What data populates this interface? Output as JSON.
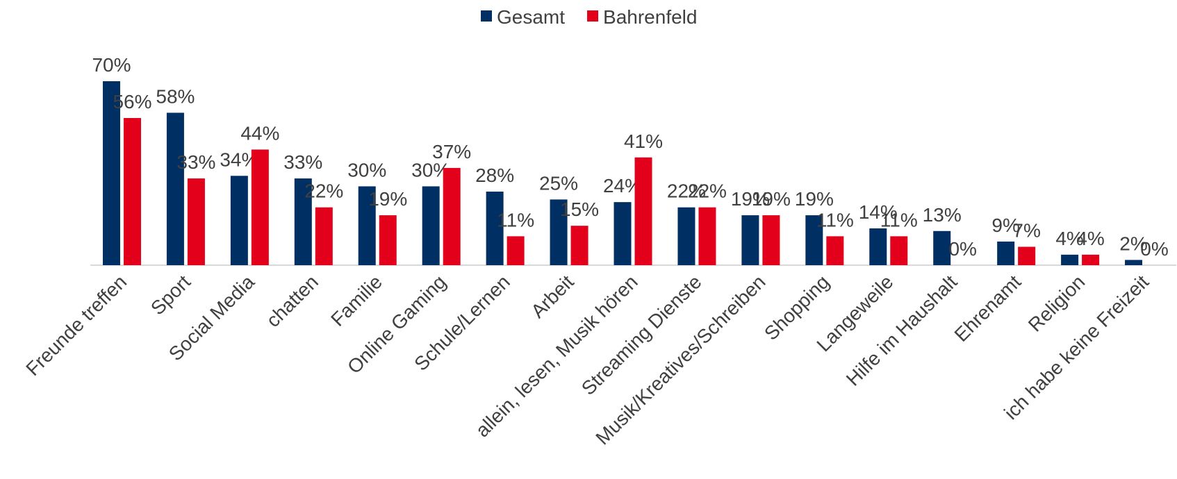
{
  "chart_data": {
    "type": "bar",
    "categories": [
      "Freunde treffen",
      "Sport",
      "Social Media",
      "chatten",
      "Familie",
      "Online Gaming",
      "Schule/Lernen",
      "Arbeit",
      "allein, lesen, Musik hören",
      "Streaming Dienste",
      "Musik/Kreatives/Schreiben",
      "Shopping",
      "Langeweile",
      "Hilfe im Haushalt",
      "Ehrenamt",
      "Religion",
      "ich habe keine Freizeit"
    ],
    "series": [
      {
        "name": "Gesamt",
        "color": "#003063",
        "values": [
          70,
          58,
          34,
          33,
          30,
          30,
          28,
          25,
          24,
          22,
          19,
          19,
          14,
          13,
          9,
          4,
          2
        ],
        "value_labels": [
          "70%",
          "58%",
          "34%",
          "33%",
          "30%",
          "30%",
          "28%",
          "25%",
          "24%",
          "22%",
          "19%",
          "19%",
          "14%",
          "13%",
          "9%",
          "4%",
          "2%"
        ]
      },
      {
        "name": "Bahrenfeld",
        "color": "#e2001a",
        "values": [
          56,
          33,
          44,
          22,
          19,
          37,
          11,
          15,
          41,
          22,
          19,
          11,
          11,
          0,
          7,
          4,
          0
        ],
        "value_labels": [
          "56%",
          "33%",
          "44%",
          "22%",
          "19%",
          "37%",
          "11%",
          "15%",
          "41%",
          "22%",
          "19%",
          "11%",
          "11%",
          "0%",
          "7%",
          "4%",
          "0%"
        ]
      }
    ],
    "ylim": [
      0,
      70
    ],
    "legend": "top"
  }
}
